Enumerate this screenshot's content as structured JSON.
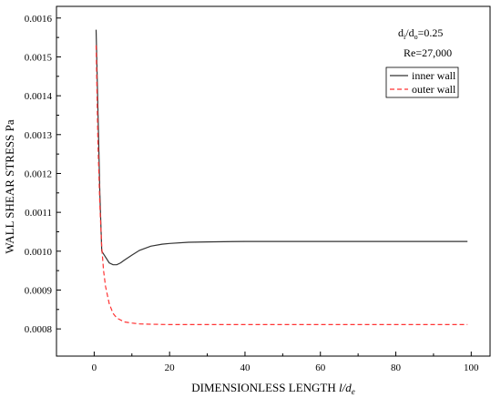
{
  "chart_data": {
    "type": "line",
    "xlabel_main": "DIMENSIONLESS LENGTH ",
    "xlabel_var": "l/d",
    "xlabel_sub": "e",
    "ylabel": "WALL SHEAR STRESS Pa",
    "xlim": [
      -10,
      105
    ],
    "ylim": [
      0.00073,
      0.00163
    ],
    "x_ticks": [
      0,
      20,
      40,
      60,
      80,
      100
    ],
    "x_tick_labels": [
      "0",
      "20",
      "40",
      "60",
      "80",
      "100"
    ],
    "y_ticks": [
      0.0008,
      0.0009,
      0.001,
      0.0011,
      0.0012,
      0.0013,
      0.0014,
      0.0015,
      0.0016
    ],
    "y_tick_labels": [
      "0.0008",
      "0.0009",
      "0.0010",
      "0.0011",
      "0.0012",
      "0.0013",
      "0.0014",
      "0.0015",
      "0.0016"
    ],
    "grid": false,
    "legend_position": "top-right",
    "annotations": {
      "ratio_d": "d",
      "ratio_sub1": "i",
      "ratio_slash": "/d",
      "ratio_sub2": "o",
      "ratio_value": "=0.25",
      "reynolds": "Re=27,000"
    },
    "series": [
      {
        "name": "inner wall",
        "color": "#333333",
        "style": "solid",
        "x": [
          0.5,
          1.5,
          2,
          3,
          4,
          5,
          6,
          7,
          8,
          10,
          12,
          15,
          18,
          20,
          25,
          30,
          40,
          50,
          60,
          70,
          80,
          90,
          99
        ],
        "y": [
          0.00157,
          0.00115,
          0.001,
          0.000985,
          0.00097,
          0.000965,
          0.000965,
          0.00097,
          0.000977,
          0.00099,
          0.001002,
          0.001013,
          0.001018,
          0.00102,
          0.001023,
          0.001024,
          0.001025,
          0.001025,
          0.001025,
          0.001025,
          0.001025,
          0.001025,
          0.001025
        ]
      },
      {
        "name": "outer wall",
        "color": "#ff3333",
        "style": "dashed",
        "x": [
          0.5,
          1,
          1.5,
          2,
          2.5,
          3,
          4,
          5,
          6,
          8,
          10,
          12,
          15,
          20,
          25,
          30,
          40,
          60,
          80,
          99
        ],
        "y": [
          0.00153,
          0.00128,
          0.00112,
          0.00101,
          0.00095,
          0.00091,
          0.000865,
          0.00084,
          0.000828,
          0.000818,
          0.000815,
          0.000813,
          0.000812,
          0.000811,
          0.000811,
          0.000811,
          0.000811,
          0.000811,
          0.000811,
          0.000811
        ]
      }
    ]
  }
}
